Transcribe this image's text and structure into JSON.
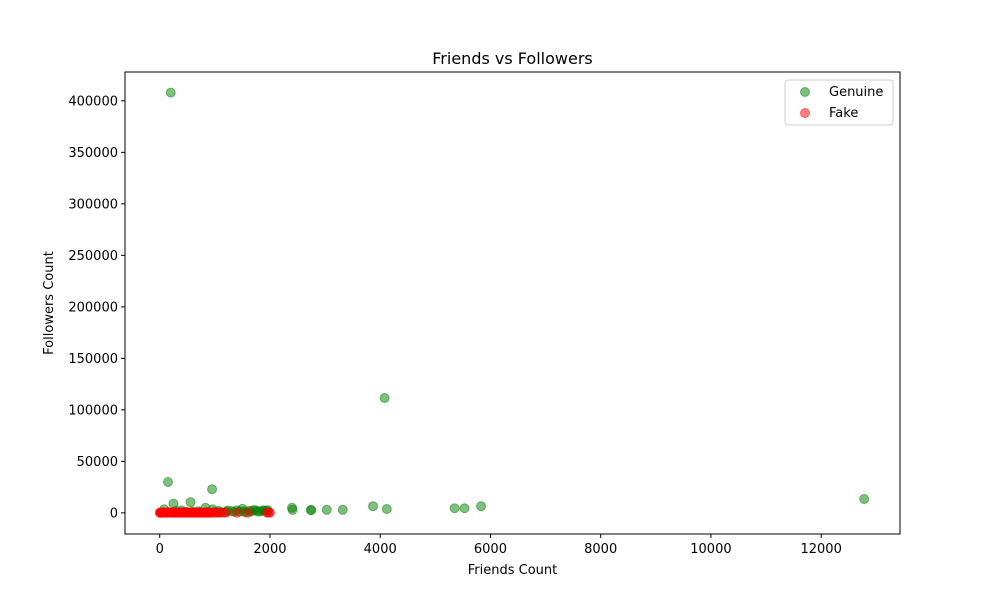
{
  "chart_data": {
    "type": "scatter",
    "title": "Friends vs Followers",
    "xlabel": "Friends Count",
    "ylabel": "Followers Count",
    "xlim": [
      -630,
      13430
    ],
    "ylim": [
      -20500,
      428000
    ],
    "xticks": [
      0,
      2000,
      4000,
      6000,
      8000,
      10000,
      12000
    ],
    "yticks": [
      0,
      50000,
      100000,
      150000,
      200000,
      250000,
      300000,
      350000,
      400000
    ],
    "grid": false,
    "legend_position": "top-right",
    "series": [
      {
        "name": "Genuine",
        "color": "#008000",
        "points": [
          [
            200,
            408000
          ],
          [
            4080,
            111500
          ],
          [
            150,
            30000
          ],
          [
            950,
            23000
          ],
          [
            12780,
            13500
          ],
          [
            560,
            10500
          ],
          [
            250,
            9000
          ],
          [
            3870,
            6500
          ],
          [
            5830,
            6500
          ],
          [
            830,
            5000
          ],
          [
            2400,
            5000
          ],
          [
            5530,
            4500
          ],
          [
            5350,
            4500
          ],
          [
            1500,
            4000
          ],
          [
            4120,
            3800
          ],
          [
            80,
            3500
          ],
          [
            960,
            3500
          ],
          [
            3320,
            3000
          ],
          [
            3030,
            3000
          ],
          [
            2410,
            2900
          ],
          [
            2750,
            2800
          ],
          [
            2740,
            2700
          ],
          [
            1700,
            2700
          ],
          [
            1960,
            2700
          ],
          [
            1750,
            2600
          ],
          [
            1400,
            2400
          ],
          [
            1880,
            2500
          ],
          [
            1230,
            2300
          ],
          [
            1620,
            2000
          ],
          [
            1070,
            1800
          ],
          [
            1300,
            1700
          ],
          [
            1530,
            1600
          ],
          [
            1830,
            1500
          ],
          [
            1900,
            2000
          ],
          [
            1660,
            1400
          ],
          [
            1450,
            1300
          ],
          [
            700,
            1600
          ],
          [
            400,
            2400
          ],
          [
            300,
            2000
          ],
          [
            600,
            1300
          ],
          [
            1200,
            1200
          ],
          [
            1000,
            1000
          ],
          [
            1780,
            1200
          ],
          [
            1950,
            1600
          ],
          [
            1350,
            1000
          ],
          [
            500,
            800
          ],
          [
            850,
            900
          ],
          [
            1100,
            700
          ],
          [
            350,
            500
          ],
          [
            1550,
            500
          ]
        ]
      },
      {
        "name": "Fake",
        "color": "#ff0000",
        "points": [
          [
            0,
            100
          ],
          [
            10,
            300
          ],
          [
            20,
            200
          ],
          [
            30,
            500
          ],
          [
            40,
            100
          ],
          [
            50,
            400
          ],
          [
            60,
            200
          ],
          [
            80,
            300
          ],
          [
            100,
            100
          ],
          [
            120,
            400
          ],
          [
            140,
            200
          ],
          [
            160,
            300
          ],
          [
            180,
            500
          ],
          [
            200,
            100
          ],
          [
            220,
            300
          ],
          [
            240,
            200
          ],
          [
            260,
            400
          ],
          [
            280,
            100
          ],
          [
            300,
            300
          ],
          [
            320,
            200
          ],
          [
            340,
            500
          ],
          [
            360,
            100
          ],
          [
            380,
            300
          ],
          [
            400,
            200
          ],
          [
            420,
            400
          ],
          [
            440,
            100
          ],
          [
            460,
            300
          ],
          [
            480,
            200
          ],
          [
            500,
            500
          ],
          [
            520,
            100
          ],
          [
            540,
            300
          ],
          [
            560,
            200
          ],
          [
            580,
            400
          ],
          [
            600,
            100
          ],
          [
            620,
            300
          ],
          [
            640,
            200
          ],
          [
            660,
            400
          ],
          [
            680,
            100
          ],
          [
            700,
            300
          ],
          [
            720,
            200
          ],
          [
            740,
            400
          ],
          [
            760,
            100
          ],
          [
            780,
            300
          ],
          [
            800,
            200
          ],
          [
            820,
            300
          ],
          [
            840,
            100
          ],
          [
            860,
            200
          ],
          [
            880,
            300
          ],
          [
            900,
            100
          ],
          [
            930,
            200
          ],
          [
            960,
            300
          ],
          [
            1000,
            100
          ],
          [
            1050,
            200
          ],
          [
            1100,
            100
          ],
          [
            1150,
            300
          ],
          [
            1200,
            200
          ],
          [
            1400,
            100
          ],
          [
            1600,
            200
          ],
          [
            1950,
            100
          ],
          [
            1980,
            300
          ],
          [
            2000,
            200
          ],
          [
            250,
            800
          ],
          [
            450,
            700
          ],
          [
            150,
            600
          ]
        ]
      }
    ]
  }
}
